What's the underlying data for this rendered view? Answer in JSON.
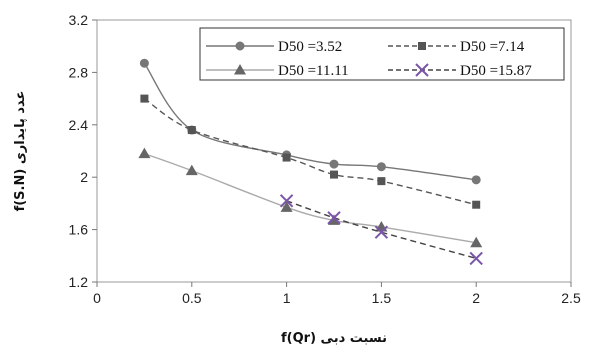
{
  "chart_data": {
    "type": "line",
    "xlabel": "نسبت دبی (Qr)f",
    "ylabel": "عدد پایداری (S.N)f",
    "xlim": [
      0,
      2.5
    ],
    "ylim": [
      1.2,
      3.2
    ],
    "x_ticks": [
      "0",
      "0.5",
      "1",
      "1.5",
      "2",
      "2.5"
    ],
    "y_ticks": [
      "1.2",
      "1.6",
      "2",
      "2.4",
      "2.8",
      "3.2"
    ],
    "grid": false,
    "legend_position": "top-right",
    "series": [
      {
        "name": "D50 =3.52",
        "color": "#777777",
        "marker": "circle",
        "line": "solid",
        "points": [
          [
            0.25,
            2.87
          ],
          [
            0.5,
            2.36
          ],
          [
            1.0,
            2.17
          ],
          [
            1.25,
            2.1
          ],
          [
            1.5,
            2.08
          ],
          [
            2.0,
            1.98
          ]
        ]
      },
      {
        "name": "D50 =7.14",
        "color": "#555555",
        "marker": "square",
        "line": "dashed",
        "points": [
          [
            0.25,
            2.6
          ],
          [
            0.5,
            2.36
          ],
          [
            1.0,
            2.15
          ],
          [
            1.25,
            2.02
          ],
          [
            1.5,
            1.97
          ],
          [
            2.0,
            1.79
          ]
        ]
      },
      {
        "name": "D50 =11.11",
        "color": "#aaaaaa",
        "marker_color": "#666666",
        "marker": "triangle",
        "line": "solid",
        "points": [
          [
            0.25,
            2.18
          ],
          [
            0.5,
            2.05
          ],
          [
            1.0,
            1.77
          ],
          [
            1.25,
            1.67
          ],
          [
            1.5,
            1.62
          ],
          [
            2.0,
            1.5
          ]
        ]
      },
      {
        "name": "D50 =15.87",
        "color": "#444444",
        "marker_color": "#7a55a8",
        "marker": "x",
        "line": "dashed",
        "points": [
          [
            1.0,
            1.82
          ],
          [
            1.25,
            1.69
          ],
          [
            1.5,
            1.58
          ],
          [
            2.0,
            1.38
          ]
        ]
      }
    ]
  }
}
